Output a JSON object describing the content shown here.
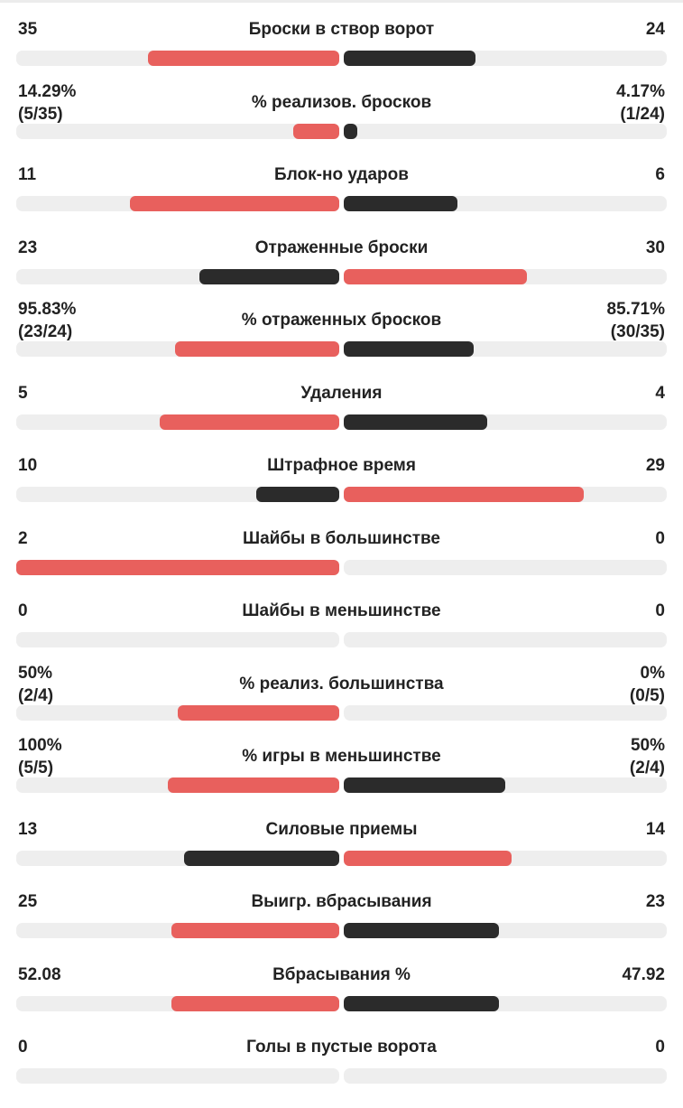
{
  "colors": {
    "better": "#e8605d",
    "worse": "#2b2b2b",
    "track": "#eeeeee"
  },
  "stats": [
    {
      "label": "Броски в створ ворот",
      "left": "35",
      "right": "24",
      "lv": 35,
      "rv": 24,
      "better": "left"
    },
    {
      "label": "% реализов. бросков",
      "left": "14.29%\n(5/35)",
      "right": "4.17%\n(1/24)",
      "lv": 14.29,
      "rv": 4.17,
      "better": "left"
    },
    {
      "label": "Блок-но ударов",
      "left": "11",
      "right": "6",
      "lv": 11,
      "rv": 6,
      "better": "left"
    },
    {
      "label": "Отраженные броски",
      "left": "23",
      "right": "30",
      "lv": 23,
      "rv": 30,
      "better": "right"
    },
    {
      "label": "% отраженных бросков",
      "left": "95.83%\n(23/24)",
      "right": "85.71%\n(30/35)",
      "lv": 95.83,
      "rv": 85.71,
      "better": "left"
    },
    {
      "label": "Удаления",
      "left": "5",
      "right": "4",
      "lv": 5,
      "rv": 4,
      "better": "left"
    },
    {
      "label": "Штрафное время",
      "left": "10",
      "right": "29",
      "lv": 10,
      "rv": 29,
      "better": "right"
    },
    {
      "label": "Шайбы в большинстве",
      "left": "2",
      "right": "0",
      "lv": 2,
      "rv": 0,
      "better": "left"
    },
    {
      "label": "Шайбы в меньшинстве",
      "left": "0",
      "right": "0",
      "lv": 0,
      "rv": 0,
      "better": "none"
    },
    {
      "label": "% реализ. большинства",
      "left": "50%\n(2/4)",
      "right": "0%\n(0/5)",
      "lv": 50,
      "rv": 0,
      "better": "left"
    },
    {
      "label": "% игры в меньшинстве",
      "left": "100%\n(5/5)",
      "right": "50%\n(2/4)",
      "lv": 100,
      "rv": 50,
      "better": "left"
    },
    {
      "label": "Силовые приемы",
      "left": "13",
      "right": "14",
      "lv": 13,
      "rv": 14,
      "better": "right"
    },
    {
      "label": "Выигр. вбрасывания",
      "left": "25",
      "right": "23",
      "lv": 25,
      "rv": 23,
      "better": "left"
    },
    {
      "label": "Вбрасывания %",
      "left": "52.08",
      "right": "47.92",
      "lv": 52.08,
      "rv": 47.92,
      "better": "left"
    },
    {
      "label": "Голы в пустые ворота",
      "left": "0",
      "right": "0",
      "lv": 0,
      "rv": 0,
      "better": "none"
    }
  ]
}
